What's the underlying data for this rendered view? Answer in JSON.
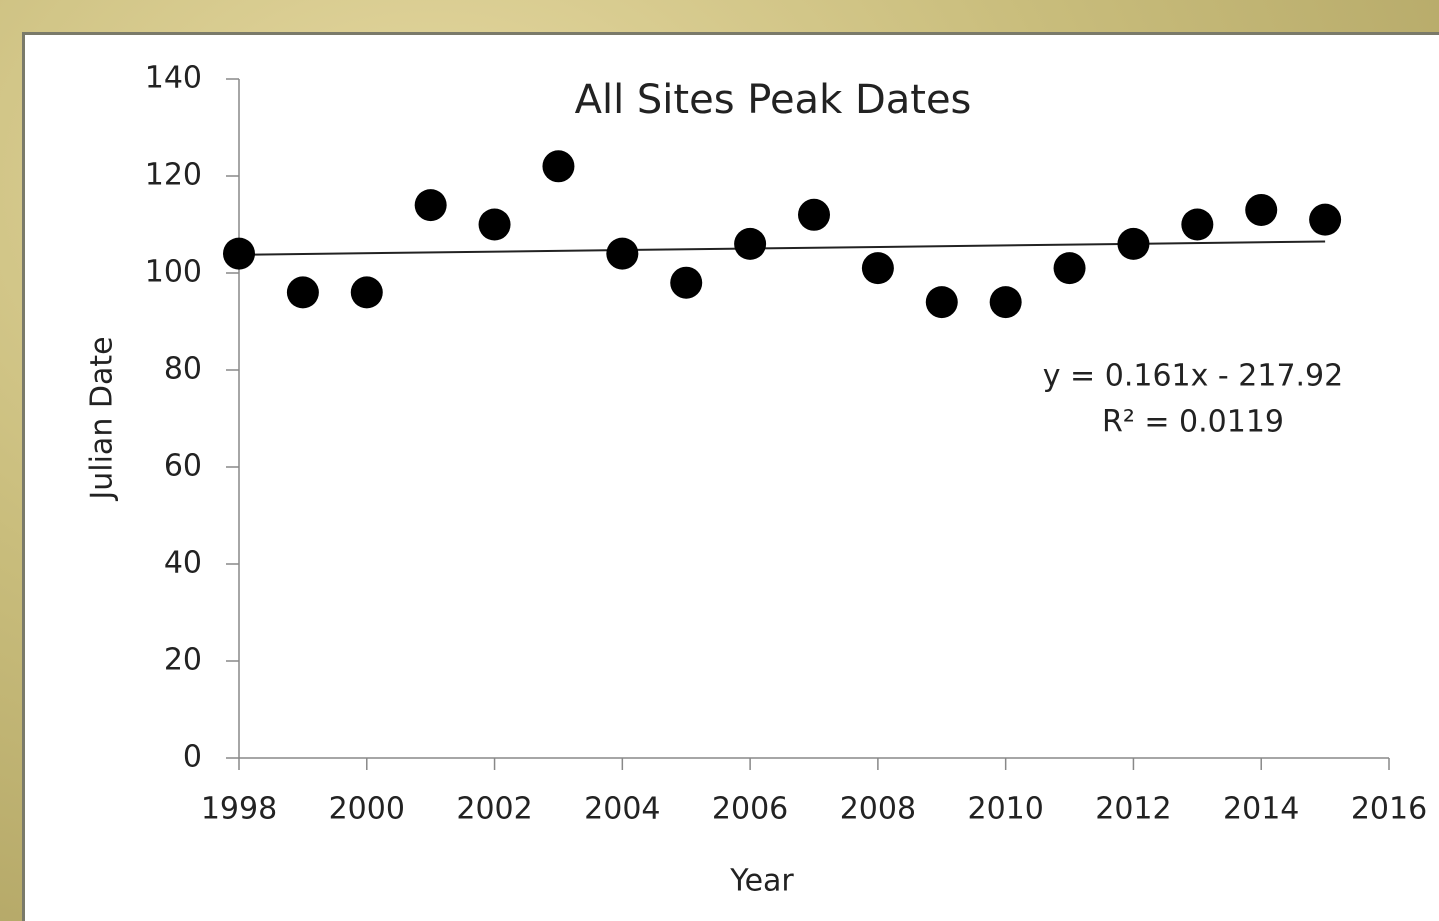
{
  "chart_data": {
    "type": "scatter",
    "title": "All Sites Peak Dates",
    "x_label": "Year",
    "y_label": "Julian Date",
    "x": [
      1998,
      1999,
      2000,
      2001,
      2002,
      2003,
      2004,
      2005,
      2006,
      2007,
      2008,
      2009,
      2010,
      2011,
      2012,
      2013,
      2014,
      2015
    ],
    "values": [
      104,
      96,
      96,
      114,
      110,
      122,
      104,
      98,
      106,
      112,
      101,
      94,
      94,
      101,
      106,
      110,
      113,
      111
    ],
    "color": "#000000",
    "xlim": [
      1998,
      2016
    ],
    "xticks": [
      1998,
      2000,
      2002,
      2004,
      2006,
      2008,
      2010,
      2012,
      2014,
      2016
    ],
    "ylim": [
      0,
      140
    ],
    "yticks": [
      0,
      20,
      40,
      60,
      80,
      100,
      120,
      140
    ],
    "grid": false,
    "trendline": {
      "slope": 0.161,
      "intercept": -217.92,
      "equation": "y = 0.161x - 217.92",
      "r_squared": "R² = 0.0119"
    }
  }
}
